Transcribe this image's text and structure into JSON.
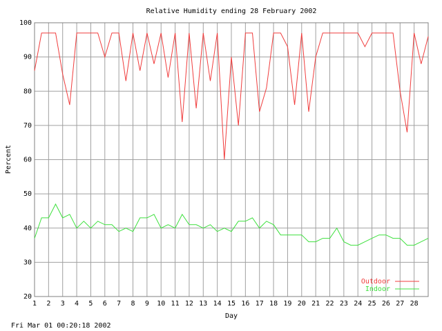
{
  "chart_data": {
    "type": "line",
    "title": "Relative Humidity ending 28 February 2002",
    "xlabel": "Day",
    "ylabel": "Percent",
    "x": [
      1,
      1.5,
      2,
      2.5,
      3,
      3.5,
      4,
      4.5,
      5,
      5.5,
      6,
      6.5,
      7,
      7.5,
      8,
      8.5,
      9,
      9.5,
      10,
      10.5,
      11,
      11.5,
      12,
      12.5,
      13,
      13.5,
      14,
      14.5,
      15,
      15.5,
      16,
      16.5,
      17,
      17.5,
      18,
      18.5,
      19,
      19.5,
      20,
      20.5,
      21,
      21.5,
      22,
      22.5,
      23,
      23.5,
      24,
      24.5,
      25,
      25.5,
      26,
      26.5,
      27,
      27.5,
      28,
      28.5,
      29
    ],
    "series": [
      {
        "name": "Outdoor",
        "color": "#f03c3c",
        "values": [
          86,
          97,
          97,
          97,
          85,
          76,
          97,
          97,
          97,
          97,
          90,
          97,
          97,
          83,
          97,
          86,
          97,
          88,
          97,
          84,
          97,
          71,
          97,
          75,
          97,
          83,
          97,
          60,
          90,
          70,
          97,
          97,
          74,
          81,
          97,
          97,
          93,
          76,
          97,
          74,
          90,
          97,
          97,
          97,
          97,
          97,
          97,
          93,
          97,
          97,
          97,
          97,
          80,
          68,
          97,
          88,
          96
        ]
      },
      {
        "name": "Indoor",
        "color": "#3ce03c",
        "values": [
          37,
          43,
          43,
          47,
          43,
          44,
          40,
          42,
          40,
          42,
          41,
          41,
          39,
          40,
          39,
          43,
          43,
          44,
          40,
          41,
          40,
          44,
          41,
          41,
          40,
          41,
          39,
          40,
          39,
          42,
          42,
          43,
          40,
          42,
          41,
          38,
          38,
          38,
          38,
          36,
          36,
          37,
          37,
          40,
          36,
          35,
          35,
          36,
          37,
          38,
          38,
          37,
          37,
          35,
          35,
          36,
          37
        ]
      }
    ],
    "xlim": [
      1,
      29
    ],
    "xticks": [
      1,
      2,
      3,
      4,
      5,
      6,
      7,
      8,
      9,
      10,
      11,
      12,
      13,
      14,
      15,
      16,
      17,
      18,
      19,
      20,
      21,
      22,
      23,
      24,
      25,
      26,
      27,
      28
    ],
    "ylim": [
      20,
      100
    ],
    "yticks": [
      20,
      30,
      40,
      50,
      60,
      70,
      80,
      90,
      100
    ],
    "grid": true
  },
  "footer": "Fri Mar 01 00:20:18 2002"
}
